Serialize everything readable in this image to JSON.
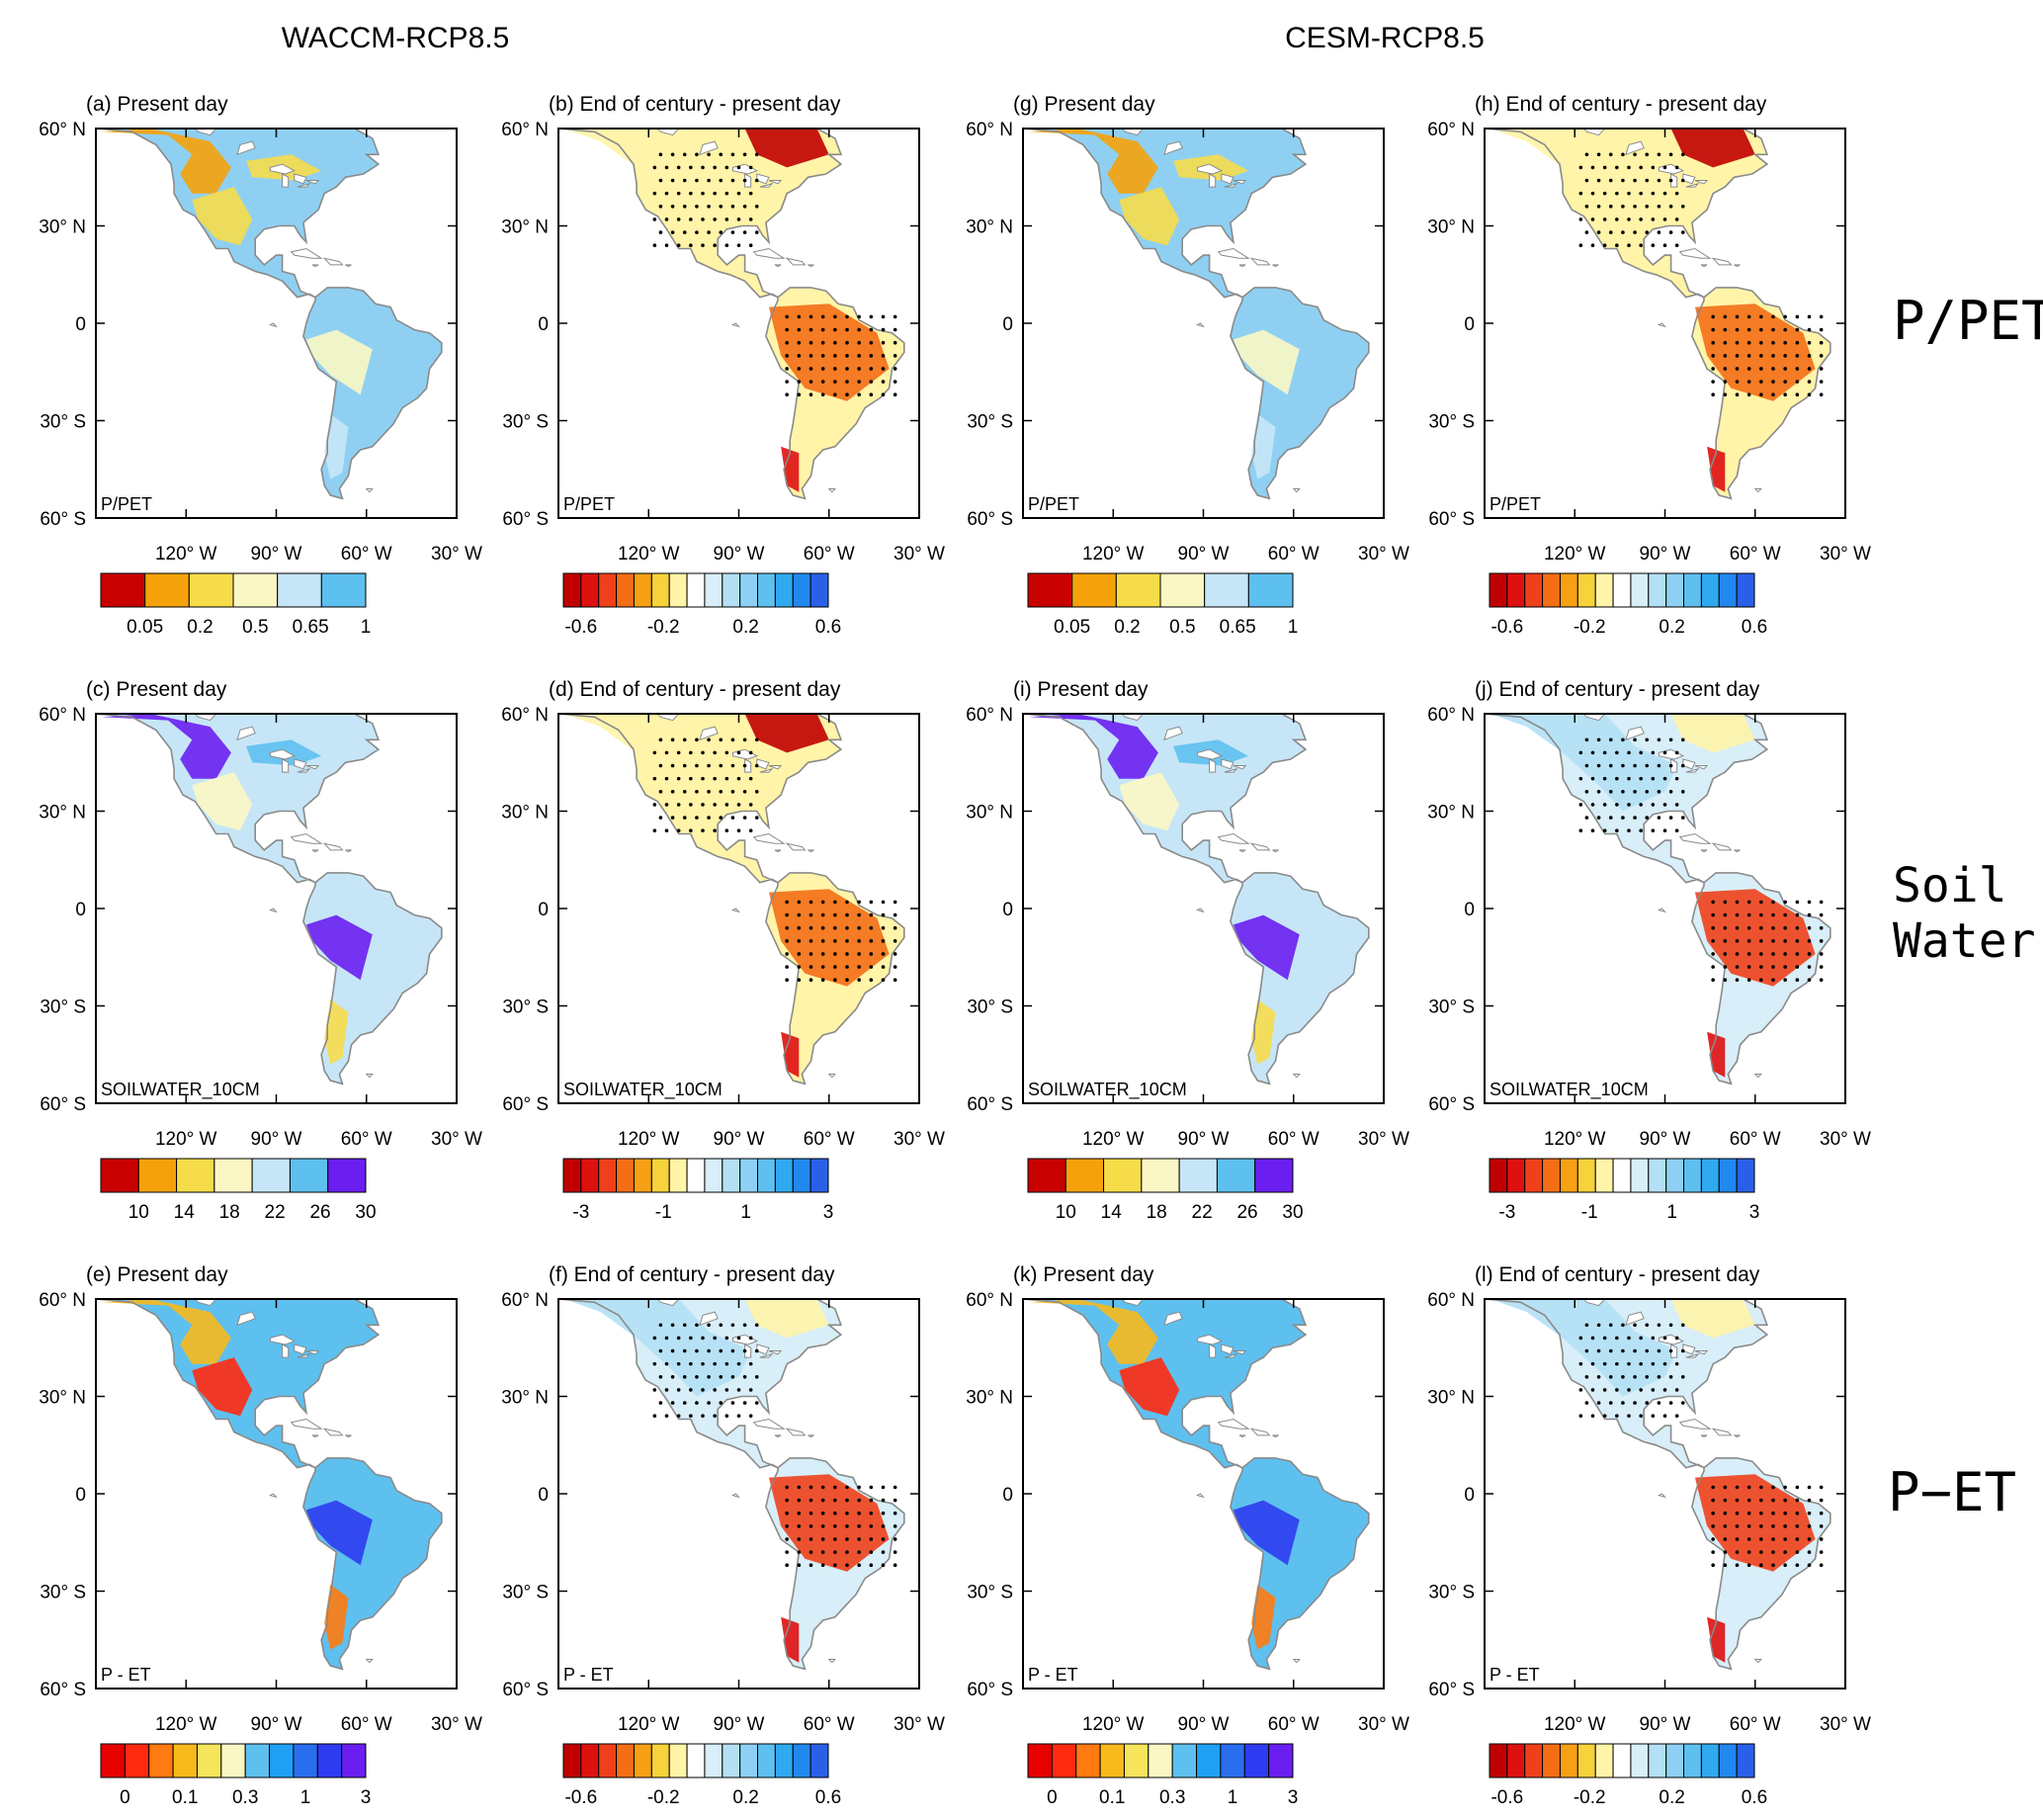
{
  "figure": {
    "model_headers": [
      "WACCM-RCP8.5",
      "CESM-RCP8.5"
    ],
    "row_labels": [
      [
        "P/PET"
      ],
      [
        "Soil",
        "Water"
      ],
      [
        "P−ET"
      ]
    ]
  },
  "colorbars": {
    "pp_pd": {
      "colors": [
        "#c80000",
        "#f5a20a",
        "#f7dc4a",
        "#fbf7c4",
        "#c6e6f7",
        "#5ec0ef"
      ],
      "labels": [
        "0.05",
        "0.2",
        "0.5",
        "0.65",
        "1"
      ]
    },
    "sw_pd": {
      "colors": [
        "#c80000",
        "#f5a20a",
        "#f7dc4a",
        "#fbf7c4",
        "#c6e6f7",
        "#5ec0ef",
        "#6a1ef0"
      ],
      "labels": [
        "10",
        "14",
        "18",
        "22",
        "26",
        "30"
      ]
    },
    "pet_pd": {
      "colors": [
        "#e60000",
        "#ff2a0f",
        "#ff7a10",
        "#f7b91c",
        "#f6e45a",
        "#fbf7c4",
        "#5ec0ef",
        "#1ea0f5",
        "#2a6ef0",
        "#2d3cf0",
        "#6a1ef0"
      ],
      "labels": [
        "0",
        "0.1",
        "0.3",
        "1",
        "3"
      ]
    },
    "diff": {
      "colors": [
        "#c00000",
        "#df1010",
        "#f0401a",
        "#f46e16",
        "#f7a014",
        "#f8d23a",
        "#fff4a8",
        "#ffffff",
        "#d8eef8",
        "#b4e0f5",
        "#8dd0f3",
        "#5ec0ef",
        "#2faaf0",
        "#2288ee",
        "#2a60e8"
      ],
      "pp_labels": [
        "-0.6",
        "-0.2",
        "0.2",
        "0.6"
      ],
      "sw_labels": [
        "-3",
        "-1",
        "1",
        "3"
      ]
    }
  },
  "axes": {
    "lat_labels": [
      "60° N",
      "30° N",
      "0",
      "30° S",
      "60° S"
    ],
    "lon_labels": [
      "120° W",
      "90° W",
      "60° W",
      "30° W"
    ]
  },
  "panels": [
    {
      "title": "(a) Present day",
      "var_label": "P/PET"
    },
    {
      "title": "(b) End of century - present day",
      "var_label": "P/PET"
    },
    {
      "title": "(g) Present day",
      "var_label": "P/PET"
    },
    {
      "title": "(h) End of century - present day",
      "var_label": "P/PET"
    },
    {
      "title": "(c) Present day",
      "var_label": "SOILWATER_10CM"
    },
    {
      "title": "(d) End of century - present day",
      "var_label": "SOILWATER_10CM"
    },
    {
      "title": "(i) Present day",
      "var_label": "SOILWATER_10CM"
    },
    {
      "title": "(j) End of century - present day",
      "var_label": "SOILWATER_10CM"
    },
    {
      "title": "(e) Present day",
      "var_label": "P - ET"
    },
    {
      "title": "(f) End of century -  present day",
      "var_label": "P - ET"
    },
    {
      "title": "(k) Present day",
      "var_label": "P - ET"
    },
    {
      "title": "(l) End of century - present day",
      "var_label": "P - ET"
    }
  ],
  "chart_data": {
    "type": "heatmap",
    "description_fields": "map panels of climate variables over the Americas",
    "domain": {
      "lon_range": [
        -150,
        -30
      ],
      "lat_range": [
        -60,
        60
      ]
    },
    "rows": [
      "P/PET",
      "Soil Water",
      "P-ET"
    ],
    "columns": [
      "WACCM present day",
      "WACCM end of century - present day",
      "CESM present day",
      "CESM end of century - present day"
    ],
    "panels": [
      {
        "id": "a",
        "model": "WACCM-RCP8.5",
        "period": "Present day",
        "variable": "P/PET",
        "levels": [
          0.05,
          0.2,
          0.5,
          0.65,
          1
        ]
      },
      {
        "id": "b",
        "model": "WACCM-RCP8.5",
        "period": "End of century - present day",
        "variable": "P/PET",
        "levels": [
          -0.6,
          -0.2,
          0.2,
          0.6
        ]
      },
      {
        "id": "g",
        "model": "CESM-RCP8.5",
        "period": "Present day",
        "variable": "P/PET",
        "levels": [
          0.05,
          0.2,
          0.5,
          0.65,
          1
        ]
      },
      {
        "id": "h",
        "model": "CESM-RCP8.5",
        "period": "End of century - present day",
        "variable": "P/PET",
        "levels": [
          -0.6,
          -0.2,
          0.2,
          0.6
        ]
      },
      {
        "id": "c",
        "model": "WACCM-RCP8.5",
        "period": "Present day",
        "variable": "SOILWATER_10CM",
        "levels": [
          10,
          14,
          18,
          22,
          26,
          30
        ]
      },
      {
        "id": "d",
        "model": "WACCM-RCP8.5",
        "period": "End of century - present day",
        "variable": "SOILWATER_10CM",
        "levels": [
          -3,
          -1,
          1,
          3
        ]
      },
      {
        "id": "i",
        "model": "CESM-RCP8.5",
        "period": "Present day",
        "variable": "SOILWATER_10CM",
        "levels": [
          10,
          14,
          18,
          22,
          26,
          30
        ]
      },
      {
        "id": "j",
        "model": "CESM-RCP8.5",
        "period": "End of century - present day",
        "variable": "SOILWATER_10CM",
        "levels": [
          -3,
          -1,
          1,
          3
        ]
      },
      {
        "id": "e",
        "model": "WACCM-RCP8.5",
        "period": "Present day",
        "variable": "P - ET",
        "levels": [
          0,
          0.1,
          0.3,
          1,
          3
        ]
      },
      {
        "id": "f",
        "model": "WACCM-RCP8.5",
        "period": "End of century - present day",
        "variable": "P - ET",
        "levels": [
          -0.6,
          -0.2,
          0.2,
          0.6
        ]
      },
      {
        "id": "k",
        "model": "CESM-RCP8.5",
        "period": "Present day",
        "variable": "P - ET",
        "levels": [
          0,
          0.1,
          0.3,
          1,
          3
        ]
      },
      {
        "id": "l",
        "model": "CESM-RCP8.5",
        "period": "End of century - present day",
        "variable": "P - ET",
        "levels": [
          -0.6,
          -0.2,
          0.2,
          0.6
        ]
      }
    ]
  }
}
